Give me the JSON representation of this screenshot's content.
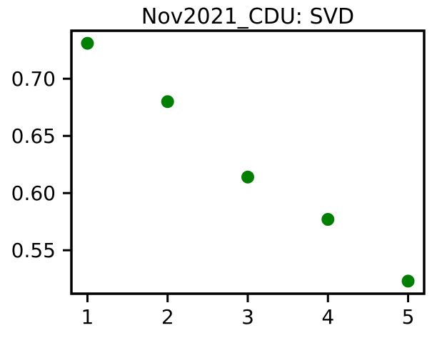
{
  "chart_data": {
    "type": "scatter",
    "title": "Nov2021_CDU: SVD",
    "xlabel": "",
    "ylabel": "",
    "x": [
      1,
      2,
      3,
      4,
      5
    ],
    "y": [
      0.731,
      0.68,
      0.614,
      0.577,
      0.523
    ],
    "xlim": [
      0.8,
      5.2
    ],
    "ylim": [
      0.512,
      0.742
    ],
    "xticks": [
      1,
      2,
      3,
      4,
      5
    ],
    "xtick_labels": [
      "1",
      "2",
      "3",
      "4",
      "5"
    ],
    "yticks": [
      0.55,
      0.6,
      0.65,
      0.7
    ],
    "ytick_labels": [
      "0.55",
      "0.60",
      "0.65",
      "0.70"
    ],
    "grid": false,
    "legend": "none",
    "marker_color": "#008000",
    "axis_color": "#000000"
  }
}
